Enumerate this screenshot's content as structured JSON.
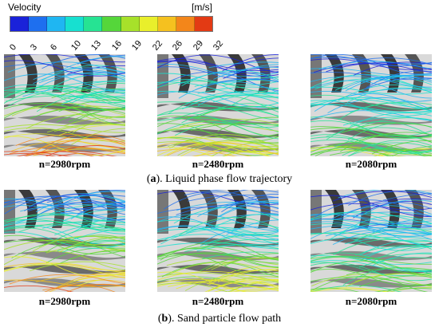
{
  "legend": {
    "title": "Velocity",
    "unit": "[m/s]",
    "ticks": [
      "0",
      "3",
      "6",
      "10",
      "13",
      "16",
      "19",
      "22",
      "26",
      "29",
      "32"
    ],
    "colors": [
      "#1a22d9",
      "#1e6fef",
      "#1fb6f2",
      "#17e0d0",
      "#26e393",
      "#55d63a",
      "#a7e12a",
      "#e9ef2b",
      "#f5c11f",
      "#f3861a",
      "#e33a14"
    ]
  },
  "rows": [
    {
      "caption_letter": "a",
      "caption_text": "). Liquid phase flow trajectory",
      "panels": [
        {
          "label": "n=2980rpm"
        },
        {
          "label": "n=2480rpm"
        },
        {
          "label": "n=2080rpm"
        }
      ]
    },
    {
      "caption_letter": "b",
      "caption_text": "). Sand particle flow path",
      "panels": [
        {
          "label": "n=2980rpm"
        },
        {
          "label": "n=2480rpm"
        },
        {
          "label": "n=2080rpm"
        }
      ]
    }
  ]
}
